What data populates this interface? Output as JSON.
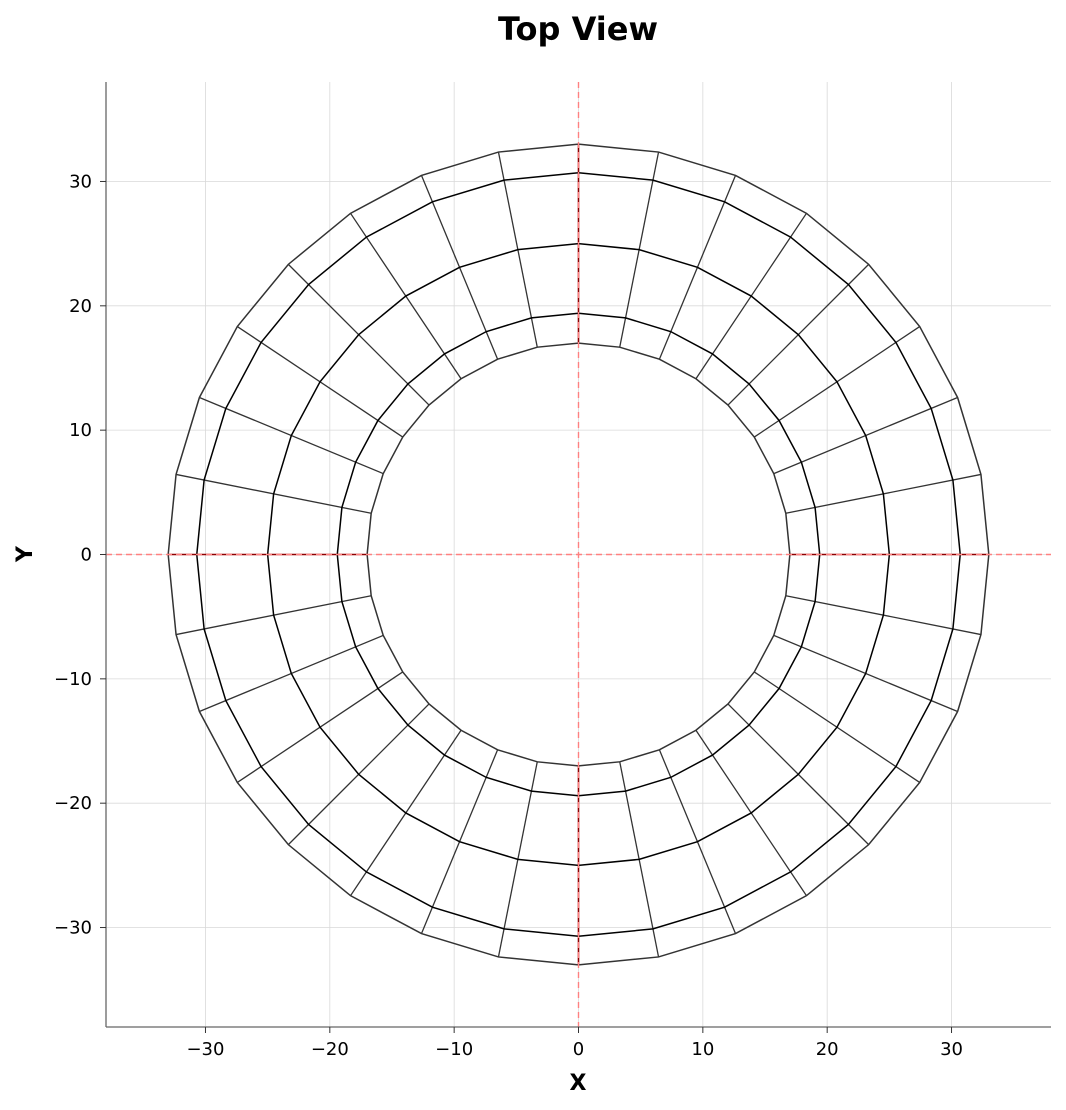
{
  "chart_data": {
    "type": "wireframe-top-view",
    "title": "Top View",
    "xlabel": "X",
    "ylabel": "Y",
    "xlim": [
      -38,
      38
    ],
    "ylim": [
      -38,
      38
    ],
    "xticks": [
      -30,
      -20,
      -10,
      0,
      10,
      20,
      30
    ],
    "yticks": [
      -30,
      -20,
      -10,
      0,
      10,
      20,
      30
    ],
    "grid": true,
    "reference_lines": {
      "x": 0,
      "y": 0,
      "color": "#ff8080",
      "style": "dashed"
    },
    "mesh": {
      "sides": 32,
      "rings": [
        {
          "radius": 17.0,
          "color": "#333333"
        },
        {
          "radius": 19.4,
          "color": "#000000"
        },
        {
          "radius": 25.0,
          "color": "#000000"
        },
        {
          "radius": 30.7,
          "color": "#000000"
        },
        {
          "radius": 33.0,
          "color": "#333333"
        }
      ],
      "spoke_color": "#333333",
      "axis_spoke_color": "#8b0000"
    }
  }
}
